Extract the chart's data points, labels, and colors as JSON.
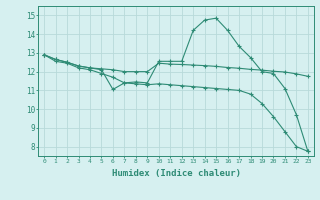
{
  "line1_x": [
    0,
    1,
    2,
    3,
    4,
    5,
    6,
    7,
    8,
    9,
    10,
    11,
    12,
    13,
    14,
    15,
    16,
    17,
    18,
    19,
    20,
    21,
    22,
    23
  ],
  "line1_y": [
    12.9,
    12.65,
    12.5,
    12.3,
    12.2,
    12.1,
    11.05,
    11.4,
    11.45,
    11.4,
    12.55,
    12.55,
    12.55,
    14.2,
    14.75,
    14.85,
    14.2,
    13.35,
    12.75,
    12.0,
    11.9,
    11.1,
    9.7,
    7.75
  ],
  "line2_x": [
    0,
    1,
    2,
    3,
    4,
    5,
    6,
    7,
    8,
    9,
    10,
    11,
    12,
    13,
    14,
    15,
    16,
    17,
    18,
    19,
    20,
    21,
    22,
    23
  ],
  "line2_y": [
    12.9,
    12.65,
    12.5,
    12.3,
    12.2,
    12.15,
    12.1,
    12.0,
    12.0,
    12.0,
    12.45,
    12.4,
    12.38,
    12.35,
    12.32,
    12.28,
    12.22,
    12.18,
    12.12,
    12.08,
    12.02,
    11.98,
    11.88,
    11.75
  ],
  "line3_x": [
    0,
    1,
    2,
    3,
    4,
    5,
    6,
    7,
    8,
    9,
    10,
    11,
    12,
    13,
    14,
    15,
    16,
    17,
    18,
    19,
    20,
    21,
    22,
    23
  ],
  "line3_y": [
    12.9,
    12.55,
    12.45,
    12.2,
    12.1,
    11.9,
    11.7,
    11.4,
    11.35,
    11.3,
    11.35,
    11.3,
    11.25,
    11.2,
    11.15,
    11.1,
    11.05,
    11.0,
    10.8,
    10.3,
    9.6,
    8.8,
    8.0,
    7.75
  ],
  "line_color": "#2e8b75",
  "bg_color": "#d6f0f0",
  "grid_color": "#b8dada",
  "xlabel": "Humidex (Indice chaleur)",
  "xlim": [
    -0.5,
    23.5
  ],
  "ylim": [
    7.5,
    15.5
  ],
  "yticks": [
    8,
    9,
    10,
    11,
    12,
    13,
    14,
    15
  ],
  "xticks": [
    0,
    1,
    2,
    3,
    4,
    5,
    6,
    7,
    8,
    9,
    10,
    11,
    12,
    13,
    14,
    15,
    16,
    17,
    18,
    19,
    20,
    21,
    22,
    23
  ]
}
